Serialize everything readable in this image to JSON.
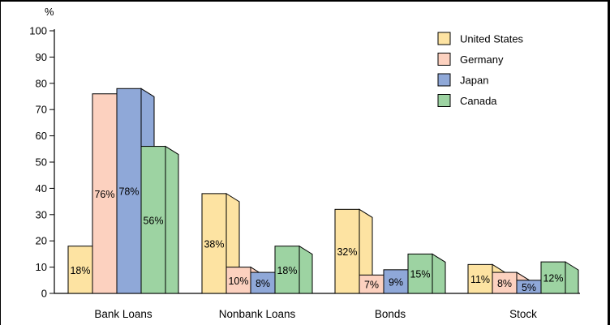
{
  "chart_data": {
    "type": "bar",
    "title": "",
    "xlabel": "",
    "ylabel": "%",
    "ylim": [
      0,
      100
    ],
    "yticks": [
      0,
      10,
      20,
      30,
      40,
      50,
      60,
      70,
      80,
      90,
      100
    ],
    "grid": false,
    "legend_position": "top-right",
    "categories": [
      "Bank Loans",
      "Nonbank Loans",
      "Bonds",
      "Stock"
    ],
    "series": [
      {
        "name": "United States",
        "color": "#fde3a2",
        "values": [
          18,
          38,
          32,
          11
        ],
        "labels": [
          "18%",
          "38%",
          "32%",
          "11%"
        ]
      },
      {
        "name": "Germany",
        "color": "#fcd1bf",
        "values": [
          76,
          10,
          7,
          8
        ],
        "labels": [
          "76%",
          "10%",
          "7%",
          "8%"
        ]
      },
      {
        "name": "Japan",
        "color": "#8fa8d8",
        "values": [
          78,
          8,
          9,
          5
        ],
        "labels": [
          "78%",
          "8%",
          "9%",
          "5%"
        ]
      },
      {
        "name": "Canada",
        "color": "#9dd3a2",
        "values": [
          56,
          18,
          15,
          12
        ],
        "labels": [
          "56%",
          "18%",
          "15%",
          "12%"
        ]
      }
    ]
  }
}
